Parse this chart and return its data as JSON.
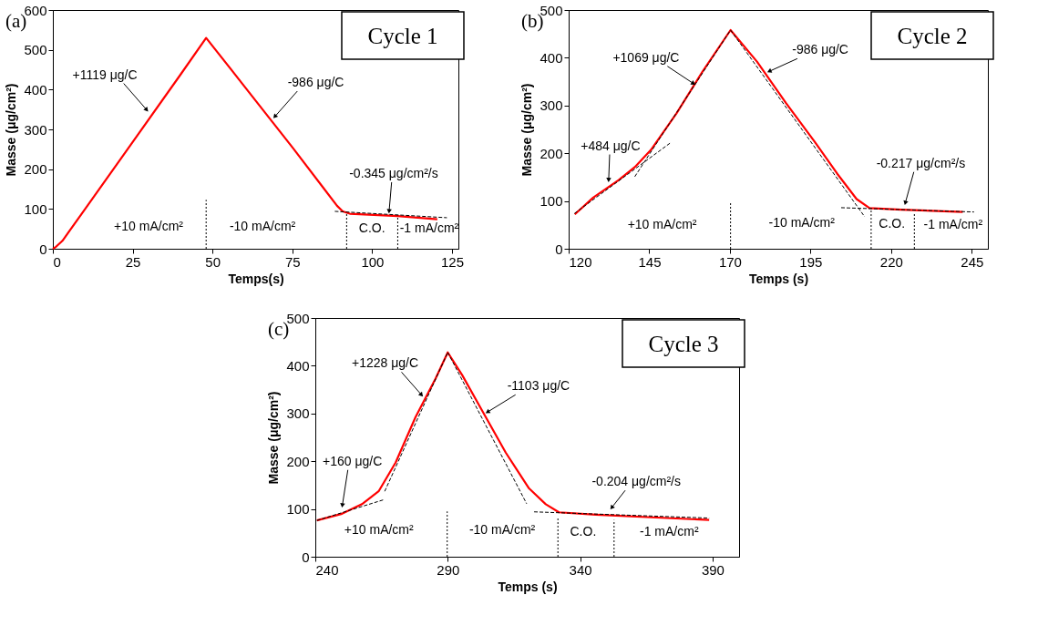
{
  "chart_data": [
    {
      "type": "line",
      "title": "(a)",
      "subtitle": "Cycle 1",
      "xlabel": "Temps(s)",
      "ylabel": "Masse (μg/cm²)",
      "xlim": [
        0,
        127
      ],
      "ylim": [
        0,
        600
      ],
      "xticks": [
        0,
        25,
        50,
        75,
        100,
        125
      ],
      "yticks": [
        0,
        100,
        200,
        300,
        400,
        500,
        600
      ],
      "grid": false,
      "series": [
        {
          "color": "#ff0000",
          "line_style": "solid",
          "x": [
            0,
            1,
            3,
            10,
            25,
            40,
            48,
            60,
            75,
            85,
            89,
            90.8,
            93,
            108,
            120.4
          ],
          "values": [
            0,
            5,
            20,
            99,
            268,
            438,
            530,
            408,
            255,
            150,
            108,
            94,
            88,
            82,
            74
          ]
        },
        {
          "color": "#000000",
          "line_style": "dashed",
          "x": [
            88.3,
            123.4
          ],
          "values": [
            94,
            78
          ]
        },
        {
          "color": "#000000",
          "line_style": "dotted",
          "x": [
            48,
            48
          ],
          "values": [
            0,
            123
          ]
        },
        {
          "color": "#000000",
          "line_style": "dotted",
          "x": [
            92,
            92
          ],
          "values": [
            0,
            90
          ]
        },
        {
          "color": "#000000",
          "line_style": "dotted",
          "x": [
            108,
            108
          ],
          "values": [
            0,
            83
          ]
        }
      ],
      "annotations": [
        {
          "text": "+1119 μg/C",
          "x": 29.4,
          "y": 349
        },
        {
          "text": "-986 μg/C",
          "x": 69.5,
          "y": 332
        },
        {
          "text": "-0.345 μg/cm²/s",
          "x": 105.3,
          "y": 94
        },
        "+10 mA/cm²",
        "-10 mA/cm²",
        "C.O.",
        "-1 mA/cm²"
      ]
    },
    {
      "type": "line",
      "title": "(b)",
      "subtitle": "Cycle 2",
      "xlabel": "Temps (s)",
      "ylabel": "Masse (μg/cm²)",
      "xlim": [
        120,
        250
      ],
      "ylim": [
        0,
        500
      ],
      "xticks": [
        120,
        145,
        170,
        195,
        220,
        245
      ],
      "yticks": [
        0,
        100,
        200,
        300,
        400,
        500
      ],
      "grid": false,
      "series": [
        {
          "color": "#ff0000",
          "line_style": "solid",
          "x": [
            121.9,
            127.6,
            135.5,
            140.5,
            145.5,
            153.5,
            161.5,
            170.2,
            178.4,
            187.4,
            196.3,
            203.3,
            209.3,
            213.3,
            223.2,
            242.2
          ],
          "values": [
            72,
            107,
            144,
            171,
            207,
            284,
            371,
            458,
            392,
            305,
            224,
            157,
            104,
            85,
            82,
            77
          ]
        },
        {
          "color": "#000000",
          "line_style": "dashed",
          "x": [
            121.8,
            151.8
          ],
          "values": [
            74,
            223
          ]
        },
        {
          "color": "#000000",
          "line_style": "dashed",
          "x": [
            140.5,
            170.2
          ],
          "values": [
            151,
            458
          ]
        },
        {
          "color": "#000000",
          "line_style": "dashed",
          "x": [
            170.2,
            211.8
          ],
          "values": [
            458,
            67
          ]
        },
        {
          "color": "#000000",
          "line_style": "dashed",
          "x": [
            204.5,
            245.7
          ],
          "values": [
            86,
            77
          ]
        },
        {
          "color": "#000000",
          "line_style": "dotted",
          "x": [
            170.2,
            170.2
          ],
          "values": [
            0,
            97
          ]
        },
        {
          "color": "#000000",
          "line_style": "dotted",
          "x": [
            213.8,
            213.8
          ],
          "values": [
            0,
            85
          ]
        },
        {
          "color": "#000000",
          "line_style": "dotted",
          "x": [
            227.2,
            227.2
          ],
          "values": [
            0,
            74
          ]
        }
      ],
      "annotations": [
        {
          "text": "+1069 μg/C",
          "x": 158.7,
          "y": 346
        },
        {
          "text": "-986 μg/C",
          "x": 182.2,
          "y": 371.5
        },
        {
          "text": "+484 μg/C",
          "x": 132.4,
          "y": 144
        },
        {
          "text": "-0.217 μg/cm²/s",
          "x": 224.4,
          "y": 96
        },
        "+10 mA/cm²",
        "-10 mA/cm²",
        "C.O.",
        "-1 mA/cm²"
      ]
    },
    {
      "type": "line",
      "title": "(c)",
      "subtitle": "Cycle 3",
      "xlabel": "Temps (s)",
      "ylabel": "Masse (μg/cm²)",
      "xlim": [
        240,
        400
      ],
      "ylim": [
        0,
        500
      ],
      "xticks": [
        240,
        290,
        340,
        390
      ],
      "yticks": [
        0,
        100,
        200,
        300,
        400,
        500
      ],
      "grid": false,
      "series": [
        {
          "color": "#ff0000",
          "line_style": "solid",
          "x": [
            240.6,
            250.1,
            257.6,
            263.9,
            270.3,
            277.8,
            285.4,
            290,
            295.5,
            303.1,
            311.9,
            320.7,
            327,
            332,
            345.9,
            388.7
          ],
          "values": [
            76,
            90,
            110,
            137,
            197,
            292,
            373,
            428,
            380,
            305,
            218,
            143,
            110,
            93,
            88,
            77
          ]
        },
        {
          "color": "#000000",
          "line_style": "dashed",
          "x": [
            240.6,
            266.2
          ],
          "values": [
            76,
            120
          ]
        },
        {
          "color": "#000000",
          "line_style": "dashed",
          "x": [
            266.2,
            290
          ],
          "values": [
            137,
            428
          ]
        },
        {
          "color": "#000000",
          "line_style": "dashed",
          "x": [
            290,
            319.8
          ],
          "values": [
            428,
            111
          ]
        },
        {
          "color": "#000000",
          "line_style": "dashed",
          "x": [
            322.6,
            388.7
          ],
          "values": [
            94,
            81
          ]
        },
        {
          "color": "#000000",
          "line_style": "dotted",
          "x": [
            289.8,
            289.8
          ],
          "values": [
            0,
            95
          ]
        },
        {
          "color": "#000000",
          "line_style": "dotted",
          "x": [
            331.6,
            331.6
          ],
          "values": [
            0,
            84
          ]
        },
        {
          "color": "#000000",
          "line_style": "dotted",
          "x": [
            352.8,
            352.8
          ],
          "values": [
            0,
            77
          ]
        }
      ],
      "annotations": [
        {
          "text": "+1228 μg/C",
          "x": 280.1,
          "y": 339
        },
        {
          "text": "-1103 μg/C",
          "x": 305,
          "y": 303
        },
        {
          "text": "+160 μg/C",
          "x": 250.2,
          "y": 107.4
        },
        {
          "text": "-0.204 μg/cm²/s",
          "x": 351.9,
          "y": 102.7
        },
        "+10 mA/cm²",
        "-10 mA/cm²",
        "C.O.",
        "-1 mA/cm²"
      ]
    }
  ]
}
